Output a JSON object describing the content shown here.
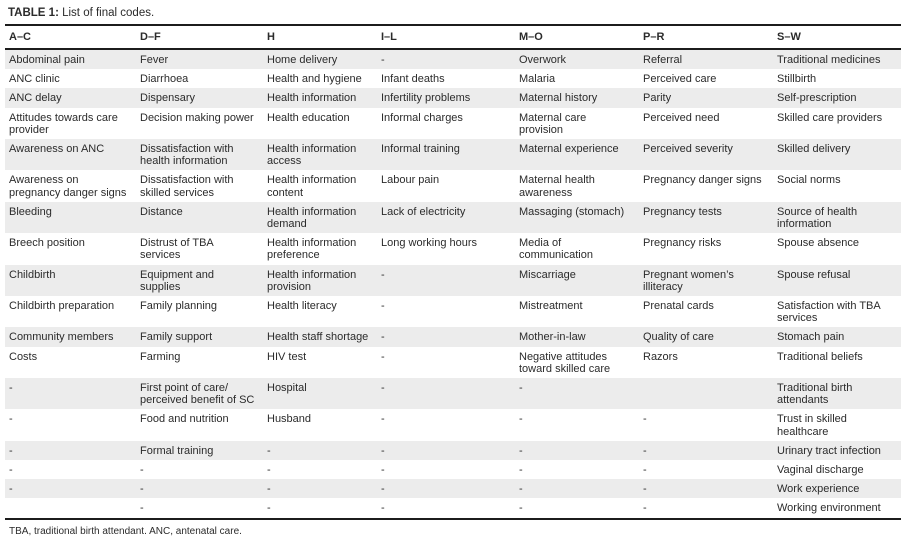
{
  "table": {
    "title_label": "TABLE 1:",
    "title_text": "List of final codes.",
    "columns": [
      "A–C",
      "D–F",
      "H",
      "I–L",
      "M–O",
      "P–R",
      "S–W"
    ],
    "rows": [
      [
        "Abdominal pain",
        "Fever",
        "Home delivery",
        "-",
        "Overwork",
        "Referral",
        "Traditional medicines"
      ],
      [
        "ANC clinic",
        "Diarrhoea",
        "Health and hygiene",
        "Infant deaths",
        "Malaria",
        "Perceived care",
        "Stillbirth"
      ],
      [
        "ANC delay",
        "Dispensary",
        "Health information",
        "Infertility problems",
        "Maternal history",
        "Parity",
        "Self-prescription"
      ],
      [
        "Attitudes towards care provider",
        "Decision making power",
        "Health education",
        "Informal charges",
        "Maternal care provision",
        "Perceived need",
        "Skilled care providers"
      ],
      [
        "Awareness on ANC",
        "Dissatisfaction with health information",
        "Health information access",
        "Informal training",
        "Maternal experience",
        "Perceived severity",
        "Skilled delivery"
      ],
      [
        "Awareness on pregnancy danger signs",
        "Dissatisfaction with skilled services",
        "Health information content",
        "Labour pain",
        "Maternal health awareness",
        "Pregnancy danger signs",
        "Social norms"
      ],
      [
        "Bleeding",
        "Distance",
        "Health information demand",
        "Lack of electricity",
        "Massaging (stomach)",
        "Pregnancy tests",
        "Source of health information"
      ],
      [
        "Breech position",
        "Distrust of TBA services",
        "Health information preference",
        "Long working hours",
        "Media of communication",
        "Pregnancy risks",
        "Spouse absence"
      ],
      [
        "Childbirth",
        "Equipment and supplies",
        "Health information provision",
        "-",
        "Miscarriage",
        "Pregnant women’s illiteracy",
        "Spouse refusal"
      ],
      [
        "Childbirth preparation",
        "Family planning",
        "Health literacy",
        "-",
        "Mistreatment",
        "Prenatal cards",
        "Satisfaction with TBA services"
      ],
      [
        "Community members",
        "Family support",
        "Health staff shortage",
        "-",
        "Mother-in-law",
        "Quality of care",
        "Stomach pain"
      ],
      [
        "Costs",
        "Farming",
        "HIV test",
        "-",
        "Negative attitudes toward skilled care",
        "Razors",
        "Traditional beliefs"
      ],
      [
        "-",
        "First point of care/ perceived benefit of SC",
        "Hospital",
        "-",
        "-",
        "",
        "Traditional birth attendants"
      ],
      [
        "-",
        "Food and nutrition",
        "Husband",
        "-",
        "-",
        "-",
        "Trust in skilled healthcare"
      ],
      [
        "-",
        "Formal training",
        "-",
        "-",
        "-",
        "-",
        "Urinary tract infection"
      ],
      [
        "-",
        "-",
        "-",
        "-",
        "-",
        "-",
        "Vaginal discharge"
      ],
      [
        "-",
        "-",
        "-",
        "-",
        "-",
        "-",
        "Work experience"
      ],
      [
        "",
        "-",
        "-",
        "-",
        "-",
        "-",
        "Working environment"
      ]
    ],
    "footnote": "TBA, traditional birth attendant. ANC, antenatal care."
  },
  "colors": {
    "row_stripe": "#ececec",
    "rule": "#1c1c1c",
    "text": "#2b2b2b"
  }
}
